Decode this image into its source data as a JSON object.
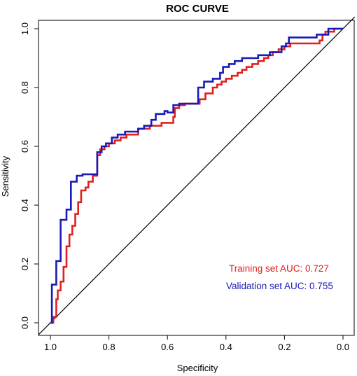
{
  "chart_data": {
    "type": "line",
    "title": "ROC CURVE",
    "xlabel": "Specificity",
    "ylabel": "Sensitivity",
    "xlim": [
      1.0,
      0.0
    ],
    "ylim": [
      0.0,
      1.0
    ],
    "x_ticks": [
      "1.0",
      "0.8",
      "0.6",
      "0.4",
      "0.2",
      "0.0"
    ],
    "y_ticks": [
      "0.0",
      "0.2",
      "0.4",
      "0.6",
      "0.8",
      "1.0"
    ],
    "grid": false,
    "legend_position": "bottom-right",
    "diagonal_reference": true,
    "series": [
      {
        "name": "Training set AUC: 0.727",
        "color": "#e02020",
        "points": [
          [
            1.0,
            0.0
          ],
          [
            0.99,
            0.0
          ],
          [
            0.99,
            0.02
          ],
          [
            0.98,
            0.02
          ],
          [
            0.98,
            0.08
          ],
          [
            0.975,
            0.08
          ],
          [
            0.975,
            0.11
          ],
          [
            0.965,
            0.11
          ],
          [
            0.965,
            0.14
          ],
          [
            0.955,
            0.14
          ],
          [
            0.955,
            0.19
          ],
          [
            0.945,
            0.19
          ],
          [
            0.945,
            0.26
          ],
          [
            0.935,
            0.26
          ],
          [
            0.935,
            0.3
          ],
          [
            0.925,
            0.3
          ],
          [
            0.925,
            0.33
          ],
          [
            0.915,
            0.33
          ],
          [
            0.915,
            0.37
          ],
          [
            0.905,
            0.37
          ],
          [
            0.905,
            0.41
          ],
          [
            0.895,
            0.41
          ],
          [
            0.895,
            0.45
          ],
          [
            0.88,
            0.45
          ],
          [
            0.88,
            0.46
          ],
          [
            0.87,
            0.46
          ],
          [
            0.87,
            0.48
          ],
          [
            0.855,
            0.48
          ],
          [
            0.855,
            0.5
          ],
          [
            0.84,
            0.5
          ],
          [
            0.84,
            0.57
          ],
          [
            0.83,
            0.57
          ],
          [
            0.83,
            0.59
          ],
          [
            0.815,
            0.59
          ],
          [
            0.815,
            0.6
          ],
          [
            0.8,
            0.6
          ],
          [
            0.8,
            0.61
          ],
          [
            0.78,
            0.61
          ],
          [
            0.78,
            0.62
          ],
          [
            0.76,
            0.62
          ],
          [
            0.76,
            0.63
          ],
          [
            0.74,
            0.63
          ],
          [
            0.74,
            0.64
          ],
          [
            0.7,
            0.64
          ],
          [
            0.7,
            0.66
          ],
          [
            0.66,
            0.66
          ],
          [
            0.66,
            0.67
          ],
          [
            0.62,
            0.67
          ],
          [
            0.62,
            0.68
          ],
          [
            0.58,
            0.68
          ],
          [
            0.58,
            0.7
          ],
          [
            0.575,
            0.7
          ],
          [
            0.575,
            0.73
          ],
          [
            0.56,
            0.73
          ],
          [
            0.56,
            0.74
          ],
          [
            0.54,
            0.74
          ],
          [
            0.54,
            0.745
          ],
          [
            0.49,
            0.745
          ],
          [
            0.49,
            0.76
          ],
          [
            0.47,
            0.76
          ],
          [
            0.47,
            0.78
          ],
          [
            0.445,
            0.78
          ],
          [
            0.445,
            0.8
          ],
          [
            0.43,
            0.8
          ],
          [
            0.43,
            0.81
          ],
          [
            0.415,
            0.81
          ],
          [
            0.415,
            0.82
          ],
          [
            0.4,
            0.82
          ],
          [
            0.4,
            0.83
          ],
          [
            0.38,
            0.83
          ],
          [
            0.38,
            0.84
          ],
          [
            0.36,
            0.84
          ],
          [
            0.36,
            0.85
          ],
          [
            0.345,
            0.85
          ],
          [
            0.345,
            0.86
          ],
          [
            0.33,
            0.86
          ],
          [
            0.33,
            0.87
          ],
          [
            0.31,
            0.87
          ],
          [
            0.31,
            0.88
          ],
          [
            0.29,
            0.88
          ],
          [
            0.29,
            0.89
          ],
          [
            0.27,
            0.89
          ],
          [
            0.27,
            0.9
          ],
          [
            0.255,
            0.9
          ],
          [
            0.255,
            0.91
          ],
          [
            0.24,
            0.91
          ],
          [
            0.24,
            0.92
          ],
          [
            0.22,
            0.92
          ],
          [
            0.22,
            0.93
          ],
          [
            0.2,
            0.93
          ],
          [
            0.2,
            0.94
          ],
          [
            0.18,
            0.94
          ],
          [
            0.18,
            0.95
          ],
          [
            0.08,
            0.95
          ],
          [
            0.08,
            0.96
          ],
          [
            0.07,
            0.96
          ],
          [
            0.07,
            0.98
          ],
          [
            0.06,
            0.98
          ],
          [
            0.06,
            0.99
          ],
          [
            0.03,
            0.99
          ],
          [
            0.03,
            1.0
          ],
          [
            0.0,
            1.0
          ]
        ]
      },
      {
        "name": "Validation set AUC: 0.755",
        "color": "#1a1ab8",
        "points": [
          [
            1.0,
            0.0
          ],
          [
            0.995,
            0.0
          ],
          [
            0.995,
            0.13
          ],
          [
            0.98,
            0.13
          ],
          [
            0.98,
            0.21
          ],
          [
            0.965,
            0.21
          ],
          [
            0.965,
            0.35
          ],
          [
            0.945,
            0.35
          ],
          [
            0.945,
            0.385
          ],
          [
            0.93,
            0.385
          ],
          [
            0.93,
            0.48
          ],
          [
            0.91,
            0.48
          ],
          [
            0.91,
            0.5
          ],
          [
            0.89,
            0.5
          ],
          [
            0.89,
            0.505
          ],
          [
            0.84,
            0.505
          ],
          [
            0.84,
            0.58
          ],
          [
            0.825,
            0.58
          ],
          [
            0.825,
            0.6
          ],
          [
            0.81,
            0.6
          ],
          [
            0.81,
            0.61
          ],
          [
            0.79,
            0.61
          ],
          [
            0.79,
            0.63
          ],
          [
            0.77,
            0.63
          ],
          [
            0.77,
            0.64
          ],
          [
            0.745,
            0.64
          ],
          [
            0.745,
            0.65
          ],
          [
            0.7,
            0.65
          ],
          [
            0.7,
            0.66
          ],
          [
            0.68,
            0.66
          ],
          [
            0.68,
            0.67
          ],
          [
            0.655,
            0.67
          ],
          [
            0.655,
            0.69
          ],
          [
            0.64,
            0.69
          ],
          [
            0.64,
            0.71
          ],
          [
            0.61,
            0.71
          ],
          [
            0.61,
            0.72
          ],
          [
            0.6,
            0.72
          ],
          [
            0.6,
            0.715
          ],
          [
            0.58,
            0.715
          ],
          [
            0.58,
            0.74
          ],
          [
            0.56,
            0.74
          ],
          [
            0.56,
            0.745
          ],
          [
            0.495,
            0.745
          ],
          [
            0.495,
            0.8
          ],
          [
            0.475,
            0.8
          ],
          [
            0.475,
            0.82
          ],
          [
            0.445,
            0.82
          ],
          [
            0.445,
            0.83
          ],
          [
            0.42,
            0.83
          ],
          [
            0.42,
            0.85
          ],
          [
            0.41,
            0.85
          ],
          [
            0.41,
            0.87
          ],
          [
            0.39,
            0.87
          ],
          [
            0.39,
            0.88
          ],
          [
            0.37,
            0.88
          ],
          [
            0.37,
            0.89
          ],
          [
            0.345,
            0.89
          ],
          [
            0.345,
            0.9
          ],
          [
            0.29,
            0.9
          ],
          [
            0.29,
            0.91
          ],
          [
            0.25,
            0.91
          ],
          [
            0.25,
            0.92
          ],
          [
            0.21,
            0.92
          ],
          [
            0.21,
            0.94
          ],
          [
            0.195,
            0.94
          ],
          [
            0.195,
            0.95
          ],
          [
            0.185,
            0.95
          ],
          [
            0.185,
            0.97
          ],
          [
            0.09,
            0.97
          ],
          [
            0.09,
            0.98
          ],
          [
            0.05,
            0.98
          ],
          [
            0.05,
            1.0
          ],
          [
            0.0,
            1.0
          ]
        ]
      }
    ]
  }
}
